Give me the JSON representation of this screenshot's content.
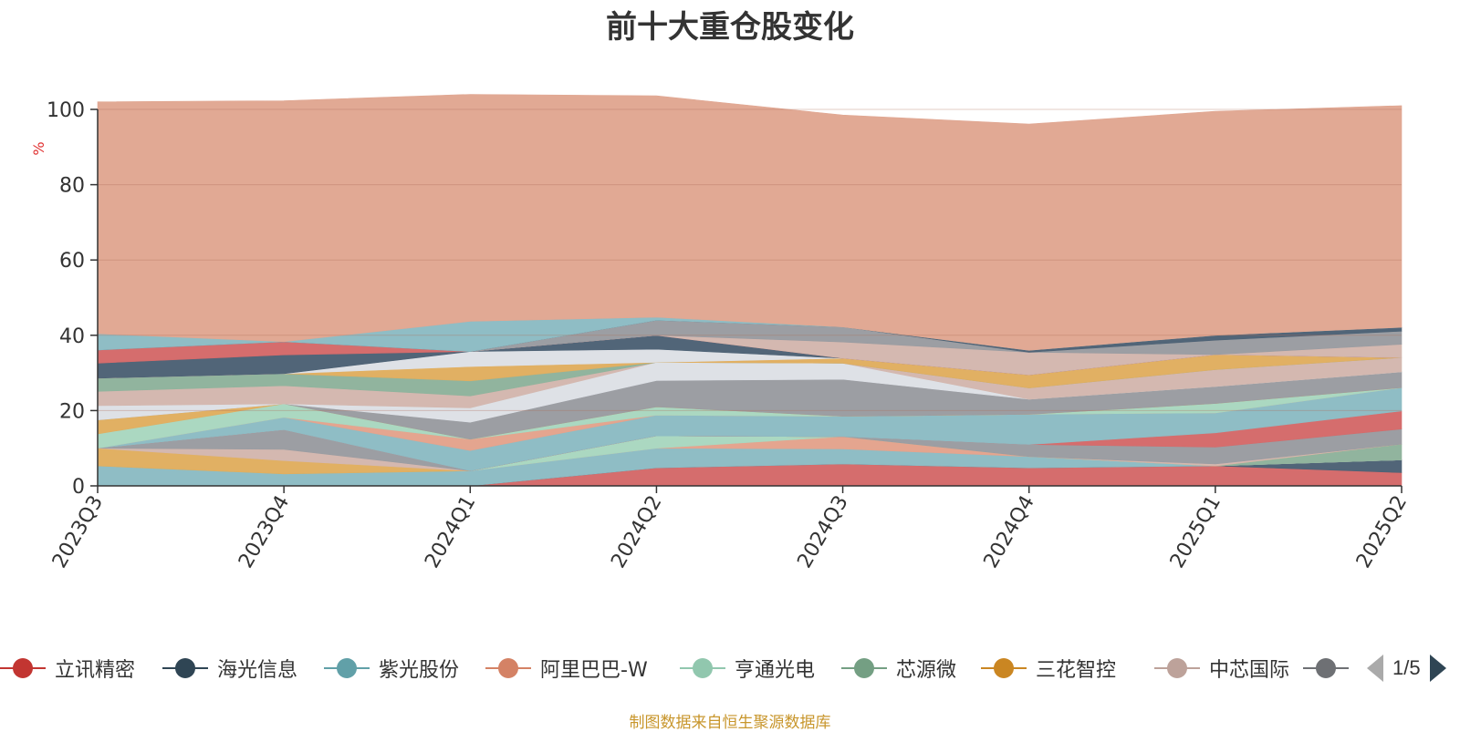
{
  "chart_data": {
    "type": "area",
    "stacked": true,
    "title": "前十大重仓股变化",
    "ylabel": "%",
    "ylim": [
      0,
      100
    ],
    "yticks": [
      0,
      20,
      40,
      60,
      80,
      100
    ],
    "grid": true,
    "legend_position": "bottom",
    "categories": [
      "2023Q3",
      "2023Q4",
      "2024Q1",
      "2024Q2",
      "2024Q3",
      "2024Q4",
      "2025Q1",
      "2025Q2"
    ],
    "series": [
      {
        "name": "立讯精密",
        "color": "#d46a6a",
        "values": [
          0,
          0,
          0,
          4.8,
          5.8,
          4.8,
          5.3,
          3.5
        ]
      },
      {
        "name": "海光信息",
        "color": "#4e6275",
        "values": [
          0,
          0,
          0,
          0,
          0,
          0,
          0,
          3.4
        ]
      },
      {
        "name": "紫光股份",
        "color": "#8dbcc4",
        "values": [
          5.3,
          3.2,
          4.0,
          5.2,
          4.0,
          3.0,
          0,
          0
        ]
      },
      {
        "name": "阿里巴巴-W",
        "color": "#e3a38d",
        "values": [
          0,
          0,
          0,
          0,
          3.3,
          0,
          0,
          0
        ]
      },
      {
        "name": "亨通光电",
        "color": "#a9d7c0",
        "values": [
          0,
          0,
          0,
          3.3,
          0,
          0,
          0,
          0
        ]
      },
      {
        "name": "芯源微",
        "color": "#8fb39c",
        "values": [
          0,
          0,
          0,
          0,
          0,
          0,
          0,
          4.2
        ]
      },
      {
        "name": "三花智控",
        "color": "#e0ae60",
        "values": [
          4.7,
          3.5,
          0,
          0,
          0,
          0,
          0,
          0
        ]
      },
      {
        "name": "中芯国际",
        "color": "#d3b7ae",
        "values": [
          0,
          3.0,
          0,
          0,
          0,
          0,
          0.5,
          0
        ]
      },
      {
        "name": "",
        "color": "#9a9ca1",
        "values": [
          0,
          5.2,
          0,
          0,
          0,
          3.2,
          4.5,
          4.0
        ]
      },
      {
        "name": "",
        "color": "#d46a6a",
        "values": [
          0,
          0,
          0,
          0,
          0,
          0,
          3.8,
          4.8
        ]
      },
      {
        "name": "",
        "color": "#8dbcc4",
        "values": [
          0,
          3.3,
          5.4,
          5.5,
          5.4,
          8.0,
          5.3,
          6.2
        ]
      },
      {
        "name": "",
        "color": "#e3a38d",
        "values": [
          0,
          0,
          3.0,
          0,
          0,
          0,
          0,
          0
        ]
      },
      {
        "name": "",
        "color": "#a9d7c0",
        "values": [
          3.8,
          3.6,
          0,
          2.2,
          0,
          0,
          2.5,
          0
        ]
      },
      {
        "name": "",
        "color": "#e0ae60",
        "values": [
          3.7,
          0,
          0,
          0,
          0,
          0,
          0,
          0
        ]
      },
      {
        "name": "",
        "color": "#9a9ca1",
        "values": [
          0,
          0,
          4.5,
          7.0,
          9.8,
          4.0,
          4.5,
          4.2
        ]
      },
      {
        "name": "",
        "color": "#dde0e6",
        "values": [
          3.8,
          0,
          3.8,
          4.8,
          4.3,
          0,
          0,
          0
        ]
      },
      {
        "name": "",
        "color": "#d3b7ae",
        "values": [
          3.8,
          4.8,
          3.2,
          0,
          0,
          3.0,
          4.5,
          3.8
        ]
      },
      {
        "name": "",
        "color": "#8fb39c",
        "values": [
          3.5,
          3.2,
          4.0,
          0,
          0,
          0,
          0,
          0
        ]
      },
      {
        "name": "",
        "color": "#e0ae60",
        "values": [
          0,
          0,
          3.8,
          0,
          1.3,
          3.5,
          4.0,
          0
        ]
      },
      {
        "name": "",
        "color": "#dde0e6",
        "values": [
          0,
          0,
          4.0,
          3.5,
          0,
          0,
          0,
          0
        ]
      },
      {
        "name": "",
        "color": "#4e6275",
        "values": [
          4.0,
          5.0,
          0,
          3.7,
          0,
          0,
          0,
          0
        ]
      },
      {
        "name": "",
        "color": "#d46a6a",
        "values": [
          3.5,
          3.5,
          0,
          0,
          0,
          0,
          0,
          0
        ]
      },
      {
        "name": "",
        "color": "#d3b7ae",
        "values": [
          0,
          0,
          0,
          0,
          4.3,
          6.0,
          0,
          3.5
        ]
      },
      {
        "name": "",
        "color": "#9a9ca1",
        "values": [
          0,
          0,
          0,
          4.0,
          4.0,
          0,
          3.8,
          3.5
        ]
      },
      {
        "name": "",
        "color": "#4e6275",
        "values": [
          0,
          0,
          0,
          0,
          0,
          0.5,
          1.3,
          1.0
        ]
      },
      {
        "name": "",
        "color": "#8dbcc4",
        "values": [
          4.3,
          0,
          8.0,
          0.8,
          0,
          0,
          0,
          0
        ]
      },
      {
        "name": "",
        "color": "#e0a792",
        "values": [
          61.6,
          64.0,
          60.3,
          58.8,
          56.3,
          60.1,
          59.5,
          58.9
        ]
      }
    ]
  },
  "legend": {
    "items": [
      {
        "label": "立讯精密",
        "color": "#c23531"
      },
      {
        "label": "海光信息",
        "color": "#2f4554"
      },
      {
        "label": "紫光股份",
        "color": "#61a0a8"
      },
      {
        "label": "阿里巴巴-W",
        "color": "#d48265"
      },
      {
        "label": "亨通光电",
        "color": "#91c7ae"
      },
      {
        "label": "芯源微",
        "color": "#749f83"
      },
      {
        "label": "三花智控",
        "color": "#ca8622"
      },
      {
        "label": "中芯国际",
        "color": "#bda29a"
      },
      {
        "label": "",
        "color": "#6e7074"
      }
    ],
    "page_text": "1/5"
  },
  "footnote": "制图数据来自恒生聚源数据库"
}
